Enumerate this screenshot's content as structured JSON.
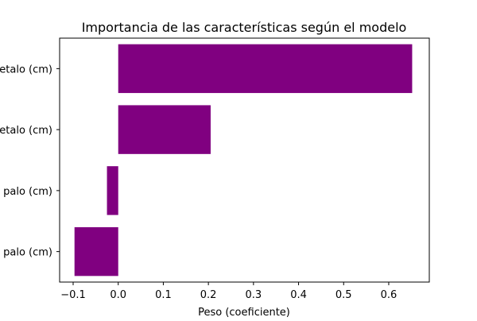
{
  "chart_data": {
    "type": "bar",
    "orientation": "horizontal",
    "title": "Importancia de las características según el modelo",
    "xlabel": "Peso (coeficiente)",
    "ylabel": "",
    "categories": [
      "etalo (cm)",
      "etalo (cm)",
      "palo (cm)",
      "palo (cm)"
    ],
    "values": [
      0.652,
      0.205,
      -0.025,
      -0.097
    ],
    "xlim": [
      -0.13,
      0.69
    ],
    "xticks": [
      -0.1,
      0.0,
      0.1,
      0.2,
      0.3,
      0.4,
      0.5,
      0.6
    ],
    "xtick_labels": [
      "−0.1",
      "0.0",
      "0.1",
      "0.2",
      "0.3",
      "0.4",
      "0.5",
      "0.6"
    ],
    "bar_color": "#800080",
    "grid": false,
    "legend": "none"
  }
}
